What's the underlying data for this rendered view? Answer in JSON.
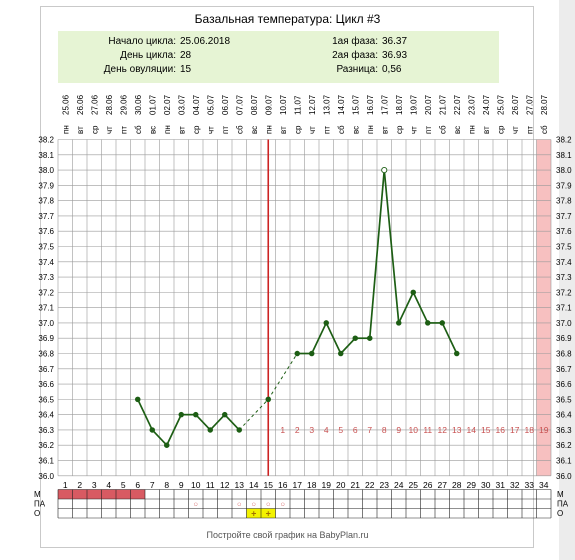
{
  "chart_data": {
    "type": "line",
    "title": "Базальная температура: Цикл #3",
    "info": {
      "cycle_start_label": "Начало цикла:",
      "cycle_start_value": "25.06.2018",
      "cycle_day_label": "День цикла:",
      "cycle_day_value": "28",
      "ovulation_day_label": "День овуляции:",
      "ovulation_day_value": "15",
      "phase1_label": "1ая фаза:",
      "phase1_value": "36.37",
      "phase2_label": "2ая фаза:",
      "phase2_value": "36.93",
      "diff_label": "Разница:",
      "diff_value": "0,56"
    },
    "weekdays": [
      "пн",
      "вт",
      "ср",
      "чт",
      "пт",
      "сб",
      "вс",
      "пн",
      "вт",
      "ср",
      "чт",
      "пт",
      "сб",
      "вс",
      "пн",
      "вт",
      "ср",
      "чт",
      "пт",
      "сб",
      "вс",
      "пн",
      "вт",
      "ср",
      "чт",
      "пт",
      "сб",
      "вс",
      "пн",
      "вт",
      "ср",
      "чт",
      "пт",
      "сб"
    ],
    "dates": [
      "25.06",
      "26.06",
      "27.06",
      "28.06",
      "29.06",
      "30.06",
      "01.07",
      "02.07",
      "03.07",
      "04.07",
      "05.07",
      "06.07",
      "07.07",
      "08.07",
      "09.07",
      "10.07",
      "11.07",
      "12.07",
      "13.07",
      "14.07",
      "15.07",
      "16.07",
      "17.07",
      "18.07",
      "19.07",
      "20.07",
      "21.07",
      "22.07",
      "23.07",
      "24.07",
      "25.07",
      "26.07",
      "27.07",
      "28.07"
    ],
    "days": [
      1,
      2,
      3,
      4,
      5,
      6,
      7,
      8,
      9,
      10,
      11,
      12,
      13,
      14,
      15,
      16,
      17,
      18,
      19,
      20,
      21,
      22,
      23,
      24,
      25,
      26,
      27,
      28,
      29,
      30,
      31,
      32,
      33,
      34
    ],
    "ylim": [
      36.0,
      38.2
    ],
    "y_ticks": [
      "36.0",
      "36.1",
      "36.2",
      "36.3",
      "36.4",
      "36.5",
      "36.6",
      "36.7",
      "36.8",
      "36.9",
      "37.0",
      "37.1",
      "37.2",
      "37.3",
      "37.4",
      "37.5",
      "37.6",
      "37.7",
      "37.8",
      "37.9",
      "38.0",
      "38.1",
      "38.2"
    ],
    "temperatures": [
      {
        "day": 6,
        "value": 36.5
      },
      {
        "day": 7,
        "value": 36.3
      },
      {
        "day": 8,
        "value": 36.2
      },
      {
        "day": 9,
        "value": 36.4
      },
      {
        "day": 10,
        "value": 36.4
      },
      {
        "day": 11,
        "value": 36.3
      },
      {
        "day": 12,
        "value": 36.4
      },
      {
        "day": 13,
        "value": 36.3
      },
      {
        "day": 15,
        "value": 36.5
      },
      {
        "day": 17,
        "value": 36.8
      },
      {
        "day": 18,
        "value": 36.8
      },
      {
        "day": 19,
        "value": 37.0
      },
      {
        "day": 20,
        "value": 36.8
      },
      {
        "day": 21,
        "value": 36.9
      },
      {
        "day": 22,
        "value": 36.9
      },
      {
        "day": 23,
        "value": 38.0
      },
      {
        "day": 24,
        "value": 37.0
      },
      {
        "day": 25,
        "value": 37.2
      },
      {
        "day": 26,
        "value": 37.0
      },
      {
        "day": 27,
        "value": 37.0
      },
      {
        "day": 28,
        "value": 36.8
      }
    ],
    "dashed_segments": [
      [
        13,
        15
      ],
      [
        15,
        17
      ]
    ],
    "open_point_day": 23,
    "ovulation_day": 15,
    "luteal_labels": [
      "1",
      "2",
      "3",
      "4",
      "5",
      "6",
      "7",
      "8",
      "9",
      "10",
      "11",
      "12",
      "13",
      "14",
      "15",
      "16",
      "17",
      "18",
      "19"
    ],
    "luteal_start_day": 16,
    "luteal_label_y": 36.3,
    "highlight_day": 34,
    "row_labels": [
      "М",
      "ПА",
      "О"
    ],
    "menstruation_days": [
      1,
      2,
      3,
      4,
      5,
      6
    ],
    "pa_marks": [
      {
        "day": 10,
        "symbol": "○"
      },
      {
        "day": 13,
        "symbol": "○"
      },
      {
        "day": 14,
        "symbol": "○"
      },
      {
        "day": 15,
        "symbol": "○"
      },
      {
        "day": 16,
        "symbol": "○"
      }
    ],
    "o_marks": [
      {
        "day": 14,
        "symbol": "+"
      },
      {
        "day": 15,
        "symbol": "+"
      }
    ],
    "colors": {
      "line": "#1d5e14",
      "point": "#1d5e14",
      "ovulation_line": "#cc2222",
      "luteal_text": "#c85050",
      "highlight": "#f7c0c0",
      "menstruation": "#d85a62",
      "pa_symbol": "#d86a6a",
      "o_fill": "#f3f200",
      "o_symbol": "#a07000",
      "grid": "#9a9a9a",
      "info_bg": "#e6f4d4"
    }
  },
  "footer": "Постройте свой график на BabyPlan.ru"
}
